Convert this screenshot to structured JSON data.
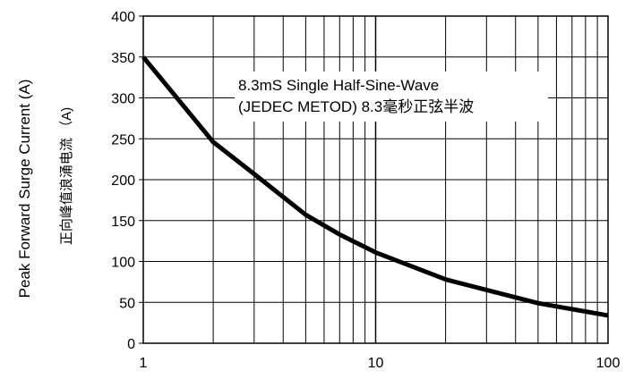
{
  "chart_data": {
    "type": "line",
    "title": "",
    "xlabel": "",
    "ylabel": "Peak Forward Surge Current (A)",
    "ylabel_secondary": "正向峰值浪涌电流 （A)",
    "annotation": [
      "8.3mS Single Half-Sine-Wave",
      "(JEDEC METOD)  8.3毫秒正弦半波"
    ],
    "x_scale": "log",
    "xlim": [
      1,
      100
    ],
    "ylim": [
      0,
      400
    ],
    "x_ticks": [
      1,
      10,
      100
    ],
    "y_ticks": [
      0,
      50,
      100,
      150,
      200,
      250,
      300,
      350,
      400
    ],
    "grid": true,
    "line_color": "#000000",
    "series": [
      {
        "x": [
          1,
          2,
          3,
          5,
          7,
          10,
          20,
          50,
          100
        ],
        "y": [
          350,
          246,
          207,
          157,
          133,
          111,
          78,
          49,
          34
        ]
      }
    ]
  }
}
